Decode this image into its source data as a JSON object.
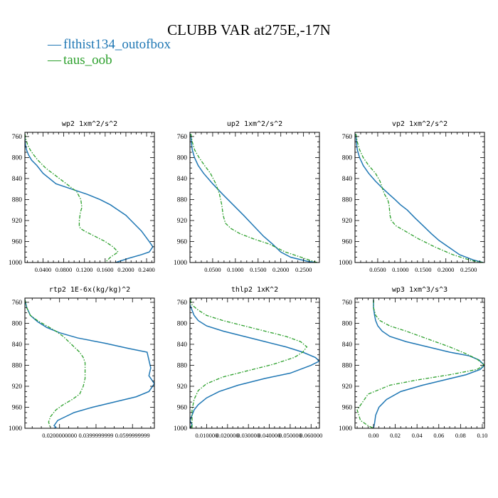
{
  "figure": {
    "title": "CLUBB VAR at275E,-17N",
    "colors": {
      "series1": "#1f77b4",
      "series2": "#2ca02c"
    }
  },
  "legend": [
    {
      "glyph": "—",
      "label": "flthist134_outofbox",
      "color": "#1f77b4",
      "dash": "solid"
    },
    {
      "glyph": "—",
      "label": "taus_oob",
      "color": "#2ca02c",
      "dash": "dashed"
    }
  ],
  "chart_data": [
    {
      "type": "line",
      "title": "wp2  1xm^2/s^2",
      "xlim": [
        0.005,
        0.255
      ],
      "ylim": [
        1000,
        752
      ],
      "y_inverted": true,
      "x_ticks": [
        0.04,
        0.08,
        0.12,
        0.16,
        0.2,
        0.24
      ],
      "x_tick_labels": [
        "0.0400",
        "0.0800",
        "0.1200",
        "0.1600",
        "0.2000",
        "0.2400"
      ],
      "y_ticks": [
        760,
        800,
        840,
        880,
        920,
        960,
        1000
      ],
      "series": [
        {
          "name": "flthist134_outofbox",
          "x": [
            0.005,
            0.005,
            0.006,
            0.008,
            0.012,
            0.018,
            0.028,
            0.04,
            0.065,
            0.095,
            0.125,
            0.15,
            0.17,
            0.185,
            0.2,
            0.21,
            0.22,
            0.23,
            0.245,
            0.252,
            0.245,
            0.23,
            0.205,
            0.18
          ],
          "y": [
            755,
            765,
            775,
            785,
            795,
            805,
            815,
            830,
            850,
            860,
            870,
            880,
            890,
            900,
            910,
            920,
            930,
            940,
            960,
            970,
            980,
            985,
            992,
            1000
          ]
        },
        {
          "name": "taus_oob",
          "x": [
            0.005,
            0.007,
            0.01,
            0.015,
            0.022,
            0.03,
            0.045,
            0.065,
            0.085,
            0.105,
            0.113,
            0.115,
            0.112,
            0.11,
            0.11,
            0.112,
            0.12,
            0.14,
            0.16,
            0.175,
            0.185,
            0.17,
            0.16
          ],
          "y": [
            755,
            765,
            775,
            785,
            795,
            805,
            820,
            835,
            850,
            865,
            880,
            895,
            905,
            920,
            930,
            935,
            940,
            950,
            960,
            970,
            980,
            990,
            1000
          ]
        }
      ]
    },
    {
      "type": "line",
      "title": "up2  1xm^2/s^2",
      "xlim": [
        0.0,
        0.285
      ],
      "ylim": [
        1000,
        752
      ],
      "y_inverted": true,
      "x_ticks": [
        0.05,
        0.1,
        0.15,
        0.2,
        0.25
      ],
      "x_tick_labels": [
        "0.0500",
        "0.1000",
        "0.1500",
        "0.2000",
        "0.2500"
      ],
      "y_ticks": [
        760,
        800,
        840,
        880,
        920,
        960,
        1000
      ],
      "series": [
        {
          "name": "flthist134_outofbox",
          "x": [
            0.002,
            0.003,
            0.005,
            0.01,
            0.018,
            0.03,
            0.05,
            0.072,
            0.095,
            0.118,
            0.14,
            0.162,
            0.182,
            0.2,
            0.222,
            0.26,
            0.28
          ],
          "y": [
            755,
            770,
            785,
            800,
            815,
            830,
            850,
            870,
            890,
            910,
            930,
            950,
            965,
            980,
            990,
            998,
            1000
          ]
        },
        {
          "name": "taus_oob",
          "x": [
            0.002,
            0.005,
            0.01,
            0.02,
            0.032,
            0.045,
            0.057,
            0.065,
            0.07,
            0.073,
            0.078,
            0.09,
            0.11,
            0.14,
            0.175,
            0.21,
            0.245,
            0.265,
            0.28
          ],
          "y": [
            755,
            770,
            785,
            800,
            815,
            830,
            850,
            870,
            890,
            910,
            925,
            935,
            945,
            955,
            965,
            980,
            990,
            996,
            1000
          ]
        }
      ]
    },
    {
      "type": "line",
      "title": "vp2  1xm^2/s^2",
      "xlim": [
        0.0,
        0.285
      ],
      "ylim": [
        1000,
        752
      ],
      "y_inverted": true,
      "x_ticks": [
        0.05,
        0.1,
        0.15,
        0.2,
        0.25
      ],
      "x_tick_labels": [
        "0.0500",
        "0.1000",
        "0.1500",
        "0.2000",
        "0.2500"
      ],
      "y_ticks": [
        760,
        800,
        840,
        880,
        920,
        960,
        1000
      ],
      "series": [
        {
          "name": "flthist134_outofbox",
          "x": [
            0.002,
            0.003,
            0.005,
            0.01,
            0.018,
            0.03,
            0.045,
            0.06,
            0.075,
            0.088,
            0.1,
            0.115,
            0.132,
            0.15,
            0.168,
            0.185,
            0.205,
            0.23,
            0.26,
            0.282
          ],
          "y": [
            755,
            770,
            785,
            800,
            815,
            830,
            845,
            858,
            870,
            880,
            890,
            900,
            915,
            930,
            945,
            958,
            970,
            985,
            995,
            1000
          ]
        },
        {
          "name": "taus_oob",
          "x": [
            0.002,
            0.005,
            0.01,
            0.018,
            0.03,
            0.045,
            0.055,
            0.06,
            0.065,
            0.072,
            0.075,
            0.076,
            0.077,
            0.08,
            0.09,
            0.11,
            0.14,
            0.175,
            0.215,
            0.255,
            0.282
          ],
          "y": [
            755,
            770,
            785,
            800,
            815,
            830,
            845,
            858,
            870,
            880,
            890,
            900,
            910,
            920,
            930,
            940,
            955,
            970,
            985,
            996,
            1000
          ]
        }
      ]
    },
    {
      "type": "line",
      "title": "rtp2  1E-6x(kg/kg)^2",
      "xlim": [
        0.001,
        0.072
      ],
      "ylim": [
        1000,
        752
      ],
      "y_inverted": true,
      "x_ticks": [
        0.02,
        0.04,
        0.06
      ],
      "x_tick_labels": [
        "0.0200000000",
        "0.0399999999",
        "0.0599999999"
      ],
      "y_ticks": [
        760,
        800,
        840,
        880,
        920,
        960,
        1000
      ],
      "series": [
        {
          "name": "flthist134_outofbox",
          "x": [
            0.001,
            0.002,
            0.004,
            0.008,
            0.013,
            0.02,
            0.03,
            0.045,
            0.058,
            0.068,
            0.069,
            0.07,
            0.069,
            0.072,
            0.069,
            0.062,
            0.05,
            0.038,
            0.028,
            0.022,
            0.019,
            0.018,
            0.017,
            0.018,
            0.017
          ],
          "y": [
            755,
            770,
            785,
            797,
            808,
            818,
            828,
            838,
            848,
            855,
            870,
            885,
            900,
            915,
            930,
            940,
            950,
            960,
            970,
            980,
            985,
            990,
            995,
            998,
            1000
          ]
        },
        {
          "name": "taus_oob",
          "x": [
            0.001,
            0.002,
            0.004,
            0.008,
            0.013,
            0.018,
            0.022,
            0.025,
            0.028,
            0.031,
            0.033,
            0.034,
            0.034,
            0.034,
            0.033,
            0.031,
            0.027,
            0.022,
            0.018,
            0.015,
            0.014,
            0.015
          ],
          "y": [
            755,
            770,
            785,
            795,
            805,
            815,
            825,
            835,
            845,
            855,
            865,
            875,
            890,
            905,
            920,
            935,
            945,
            955,
            965,
            978,
            988,
            1000
          ]
        }
      ]
    },
    {
      "type": "line",
      "title": "thlp2  1xK^2",
      "xlim": [
        0.002,
        0.064
      ],
      "ylim": [
        1000,
        752
      ],
      "y_inverted": true,
      "x_ticks": [
        0.01,
        0.02,
        0.03,
        0.04,
        0.05,
        0.06
      ],
      "x_tick_labels": [
        "0.010000",
        "0.020000",
        "0.030000",
        "0.040000",
        "0.050000",
        "0.060000"
      ],
      "y_ticks": [
        760,
        800,
        840,
        880,
        920,
        960,
        1000
      ],
      "series": [
        {
          "name": "flthist134_outofbox",
          "x": [
            0.002,
            0.002,
            0.003,
            0.004,
            0.006,
            0.01,
            0.018,
            0.028,
            0.038,
            0.048,
            0.056,
            0.062,
            0.064,
            0.06,
            0.05,
            0.038,
            0.025,
            0.016,
            0.01,
            0.006,
            0.004,
            0.003,
            0.002,
            0.003,
            0.002
          ],
          "y": [
            755,
            765,
            775,
            785,
            795,
            805,
            815,
            825,
            835,
            845,
            855,
            865,
            872,
            880,
            895,
            905,
            918,
            930,
            942,
            955,
            965,
            975,
            985,
            993,
            1000
          ]
        },
        {
          "name": "taus_oob",
          "x": [
            0.002,
            0.003,
            0.006,
            0.01,
            0.018,
            0.028,
            0.038,
            0.048,
            0.055,
            0.058,
            0.056,
            0.052,
            0.042,
            0.03,
            0.018,
            0.01,
            0.006,
            0.004,
            0.003,
            0.003,
            0.003
          ],
          "y": [
            755,
            765,
            775,
            785,
            795,
            805,
            815,
            825,
            835,
            845,
            855,
            865,
            878,
            890,
            902,
            915,
            928,
            945,
            965,
            985,
            1000
          ]
        }
      ]
    },
    {
      "type": "line",
      "title": "wp3  1xm^3/s^3",
      "xlim": [
        -0.017,
        0.102
      ],
      "ylim": [
        1000,
        752
      ],
      "y_inverted": true,
      "x_ticks": [
        0.0,
        0.02,
        0.04,
        0.06,
        0.08,
        0.1
      ],
      "x_tick_labels": [
        "0.00",
        "0.02",
        "0.04",
        "0.06",
        "0.08",
        "0.10"
      ],
      "y_ticks": [
        760,
        800,
        840,
        880,
        920,
        960,
        1000
      ],
      "series": [
        {
          "name": "flthist134_outofbox",
          "x": [
            0.0,
            0.0,
            0.001,
            0.002,
            0.004,
            0.008,
            0.015,
            0.03,
            0.05,
            0.07,
            0.088,
            0.097,
            0.102,
            0.098,
            0.085,
            0.065,
            0.045,
            0.025,
            0.012,
            0.005,
            0.002,
            0.001,
            0.0
          ],
          "y": [
            755,
            770,
            785,
            795,
            805,
            815,
            825,
            835,
            845,
            855,
            862,
            870,
            880,
            888,
            898,
            908,
            918,
            930,
            945,
            960,
            975,
            990,
            1000
          ]
        },
        {
          "name": "taus_oob",
          "x": [
            0.0,
            0.0,
            0.002,
            0.006,
            0.015,
            0.03,
            0.05,
            0.07,
            0.085,
            0.095,
            0.102,
            0.095,
            0.07,
            0.04,
            0.015,
            -0.005,
            -0.015,
            -0.012,
            -0.005,
            0.0
          ],
          "y": [
            755,
            770,
            785,
            795,
            805,
            815,
            830,
            845,
            858,
            868,
            880,
            888,
            898,
            908,
            918,
            935,
            965,
            985,
            995,
            1000
          ]
        }
      ]
    }
  ]
}
